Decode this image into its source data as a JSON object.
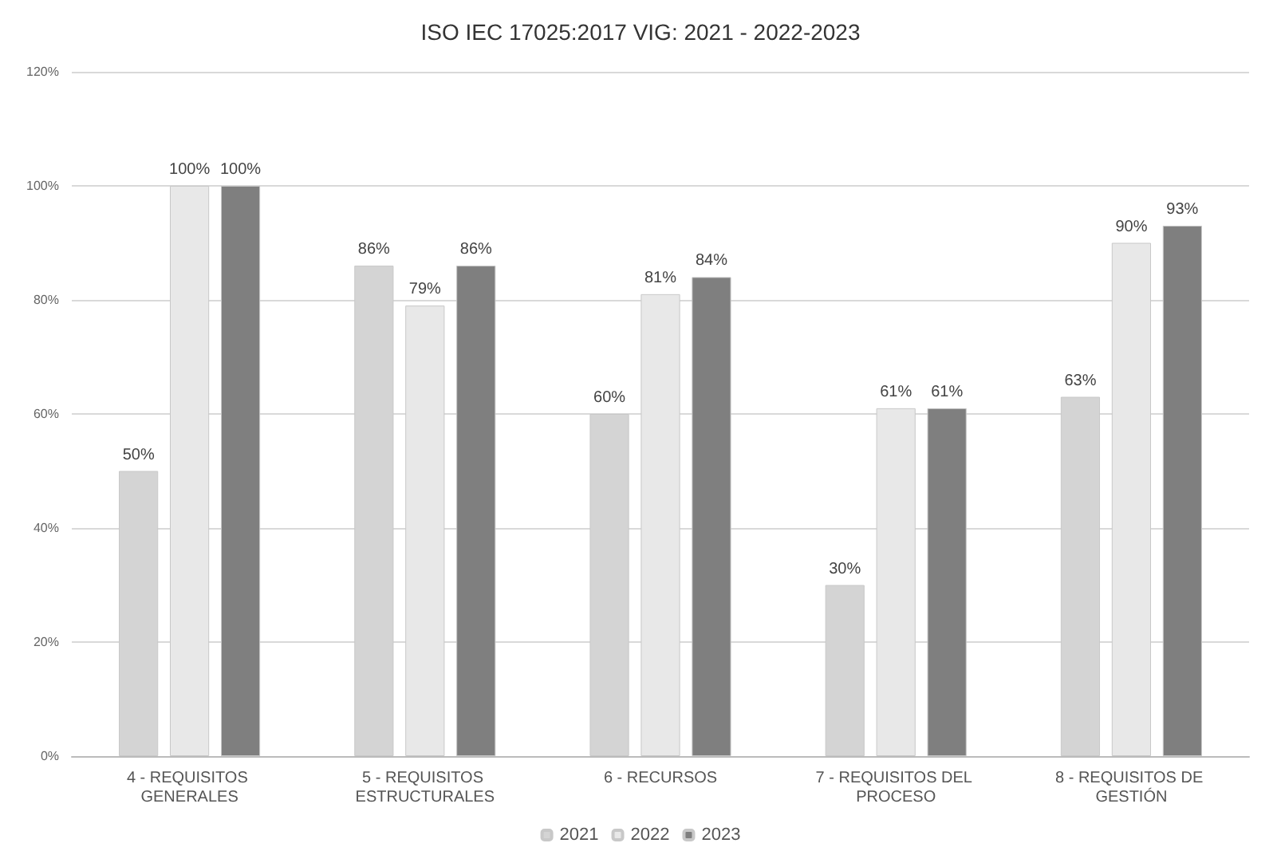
{
  "chart_data": {
    "type": "bar",
    "title": "ISO IEC 17025:2017 VIG: 2021 - 2022-2023",
    "categories": [
      "4 - REQUISITOS GENERALES",
      "5 - REQUISITOS ESTRUCTURALES",
      "6 - RECURSOS",
      "7 - REQUISITOS DEL PROCESO",
      "8 - REQUISITOS DE GESTIÓN"
    ],
    "series": [
      {
        "name": "2021",
        "color": "#d4d4d4",
        "values": [
          50,
          86,
          60,
          30,
          63
        ],
        "value_labels": [
          "50%",
          "86%",
          "60%",
          "30%",
          "63%"
        ]
      },
      {
        "name": "2022",
        "color": "#e8e8e8",
        "values": [
          100,
          79,
          81,
          61,
          90
        ],
        "value_labels": [
          "100%",
          "79%",
          "81%",
          "61%",
          "90%"
        ]
      },
      {
        "name": "2023",
        "color": "#7f7f7f",
        "values": [
          100,
          86,
          84,
          61,
          93
        ],
        "value_labels": [
          "100%",
          "86%",
          "84%",
          "61%",
          "93%"
        ]
      }
    ],
    "ylim": [
      0,
      120
    ],
    "yticks": [
      {
        "value": 0,
        "label": "0%"
      },
      {
        "value": 20,
        "label": "20%"
      },
      {
        "value": 40,
        "label": "40%"
      },
      {
        "value": 60,
        "label": "60%"
      },
      {
        "value": 80,
        "label": "80%"
      },
      {
        "value": 100,
        "label": "100%"
      },
      {
        "value": 120,
        "label": "120%"
      }
    ],
    "grid": "y",
    "legend": "bottom"
  }
}
